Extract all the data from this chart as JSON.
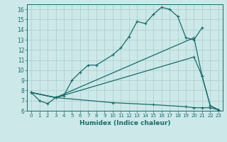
{
  "xlabel": "Humidex (Indice chaleur)",
  "background_color": "#cce8e8",
  "grid_color": "#aacccc",
  "line_color": "#1a6b6b",
  "x_range": [
    -0.5,
    23.5
  ],
  "y_range": [
    6,
    16.5
  ],
  "yticks": [
    6,
    7,
    8,
    9,
    10,
    11,
    12,
    13,
    14,
    15,
    16
  ],
  "line1_x": [
    0,
    1,
    2,
    3,
    4,
    5,
    6,
    7,
    8,
    10,
    11,
    12,
    13,
    14,
    15,
    16,
    17,
    18,
    19,
    20,
    21
  ],
  "line1_y": [
    7.8,
    7.0,
    6.7,
    7.3,
    7.5,
    9.0,
    9.8,
    10.5,
    10.5,
    11.5,
    12.2,
    13.3,
    14.8,
    14.6,
    15.5,
    16.2,
    16.0,
    15.3,
    13.2,
    13.0,
    14.2
  ],
  "line2_x": [
    0,
    3,
    20,
    21,
    22,
    23
  ],
  "line2_y": [
    7.8,
    7.3,
    13.2,
    9.4,
    6.5,
    6.1
  ],
  "line3_x": [
    0,
    3,
    20,
    21,
    22,
    23
  ],
  "line3_y": [
    7.8,
    7.3,
    11.3,
    9.4,
    6.5,
    6.1
  ],
  "line4_x": [
    0,
    3,
    10,
    15,
    19,
    20,
    21,
    22,
    23
  ],
  "line4_y": [
    7.8,
    7.3,
    6.8,
    6.6,
    6.4,
    6.3,
    6.3,
    6.3,
    6.1
  ]
}
